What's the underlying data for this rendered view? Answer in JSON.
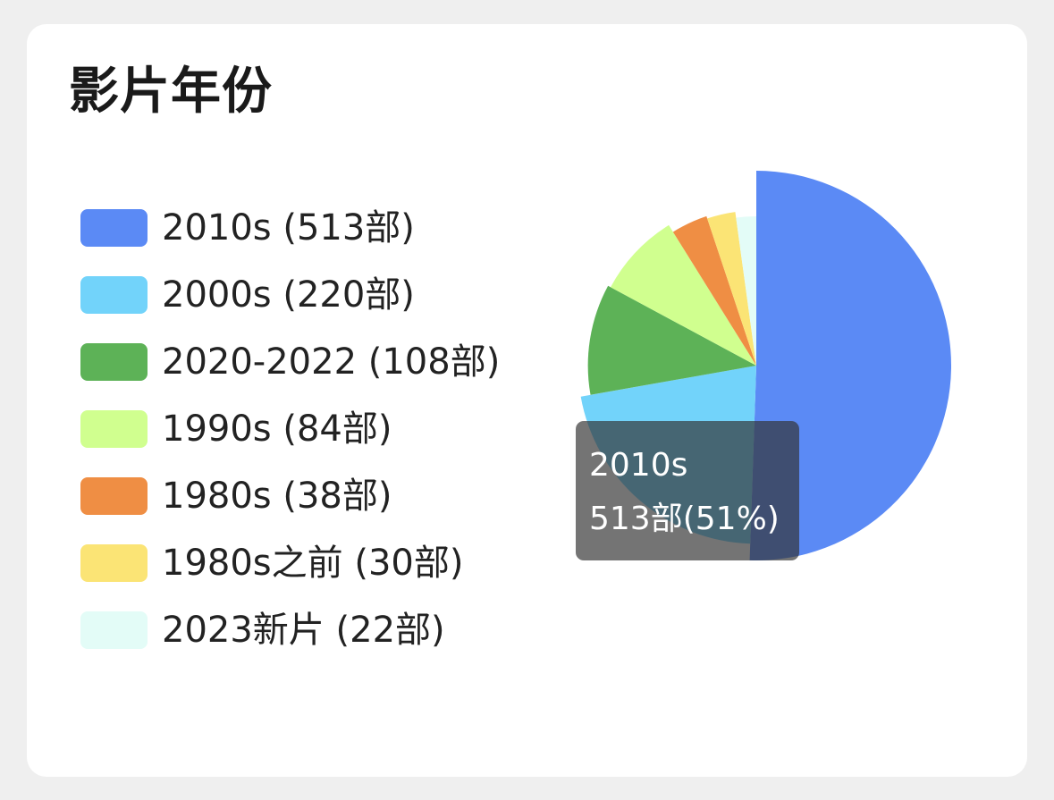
{
  "card": {
    "title": "影片年份"
  },
  "chart_data": {
    "type": "pie",
    "title": "影片年份",
    "legend_position": "left",
    "slices": [
      {
        "label": "2010s",
        "value": 513,
        "legend_text": "2010s (513部)",
        "color": "#5b8af5"
      },
      {
        "label": "2000s",
        "value": 220,
        "legend_text": "2000s (220部)",
        "color": "#72d3fa"
      },
      {
        "label": "2020-2022",
        "value": 108,
        "legend_text": "2020-2022 (108部)",
        "color": "#5db257"
      },
      {
        "label": "1990s",
        "value": 84,
        "legend_text": "1990s (84部)",
        "color": "#d0ff8f"
      },
      {
        "label": "1980s",
        "value": 38,
        "legend_text": "1980s (38部)",
        "color": "#ef8e44"
      },
      {
        "label": "1980s之前",
        "value": 30,
        "legend_text": "1980s之前 (30部)",
        "color": "#fbe475"
      },
      {
        "label": "2023新片",
        "value": 22,
        "legend_text": "2023新片 (22部)",
        "color": "#e3fcf7"
      }
    ],
    "tooltip": {
      "line1": "2010s",
      "line2": "513部(51%)"
    }
  }
}
